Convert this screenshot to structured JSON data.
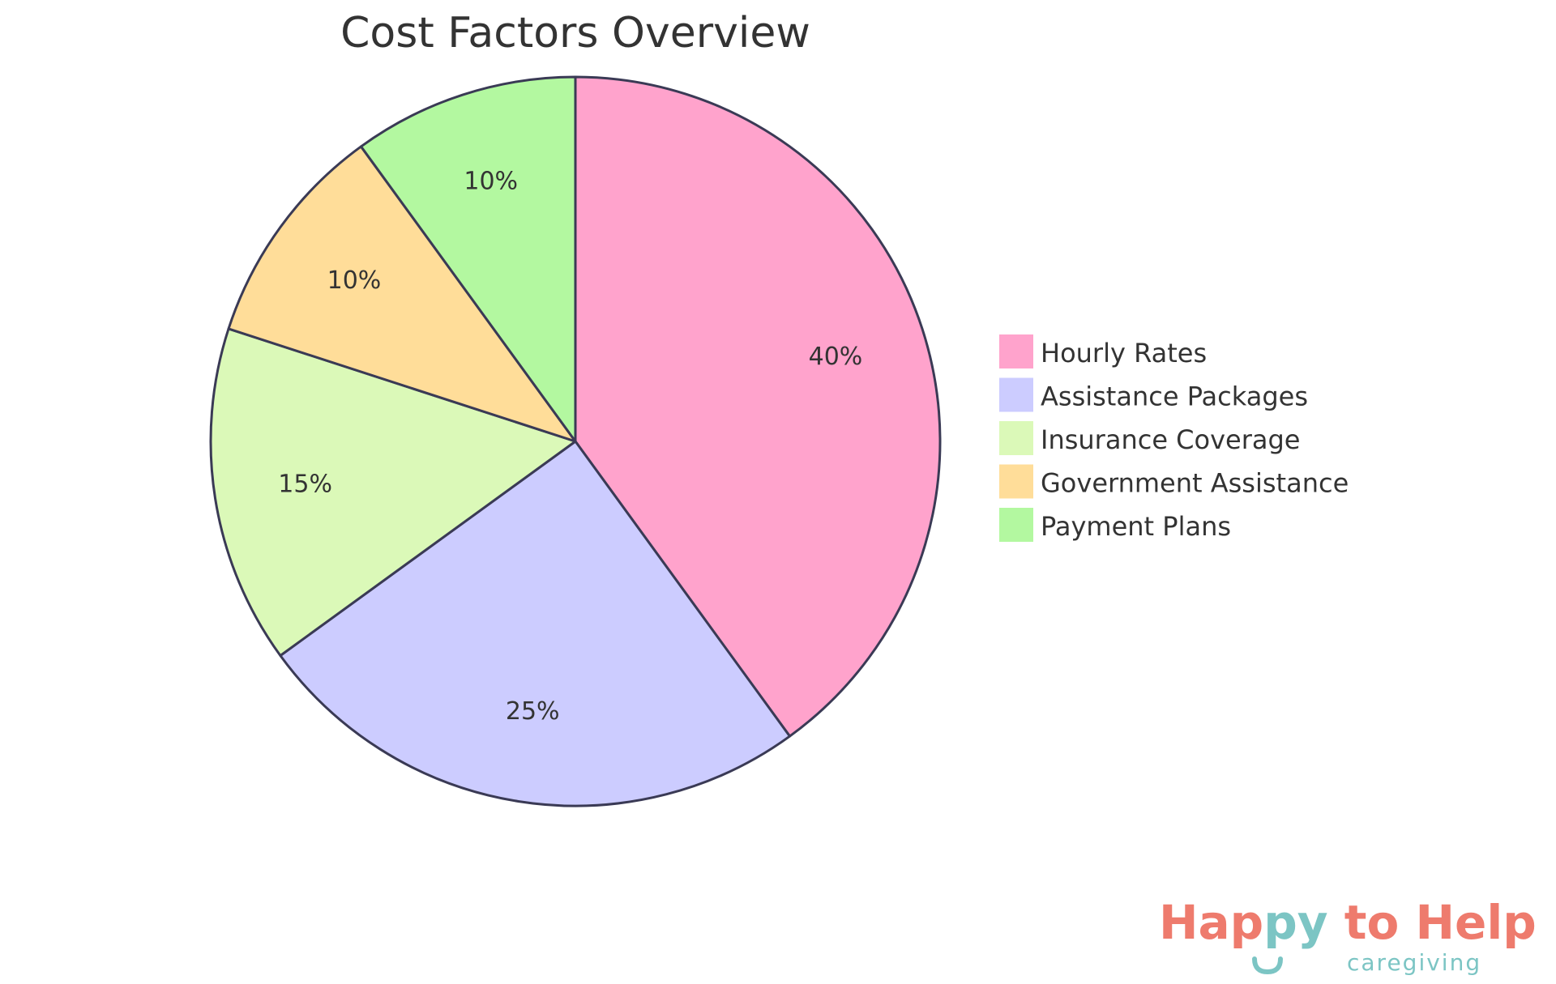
{
  "chart_data": {
    "type": "pie",
    "title": "Cost Factors Overview",
    "categories": [
      "Hourly Rates",
      "Assistance Packages",
      "Insurance Coverage",
      "Government Assistance",
      "Payment Plans"
    ],
    "values": [
      40,
      25,
      15,
      10,
      10
    ],
    "labels": [
      "40%",
      "25%",
      "15%",
      "10%",
      "10%"
    ],
    "colors": [
      "#FFA3CC",
      "#CCCCFF",
      "#DBF9B8",
      "#FFDD99",
      "#B3F8A0"
    ],
    "slice_stroke": "#3A3A55",
    "start_angle": "12 o'clock",
    "direction": "clockwise",
    "legend_position": "right"
  },
  "logo": {
    "main_part1": "Hap",
    "main_part2": "py",
    "main_part3": " to Help",
    "sub": "caregiving",
    "color_primary": "#EE7B6D",
    "color_secondary": "#7CC5C4"
  }
}
